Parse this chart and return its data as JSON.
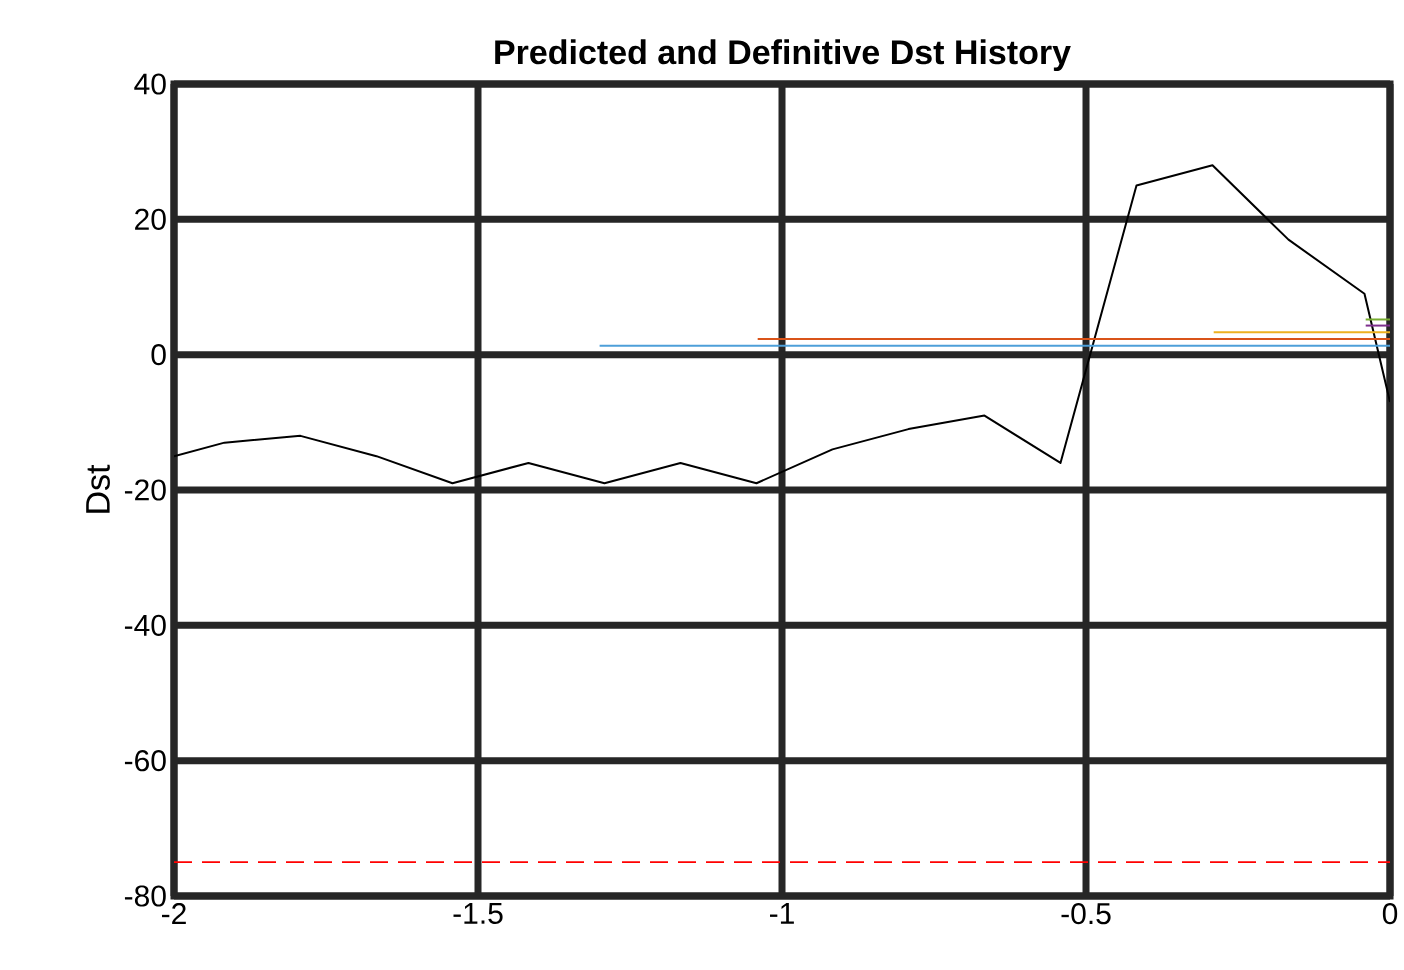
{
  "chart_data": {
    "type": "line",
    "title": "Predicted and Definitive Dst History",
    "ylabel": "Dst",
    "xlim": [
      -2,
      0
    ],
    "ylim": [
      -80,
      40
    ],
    "xticks": [
      -2,
      -1.5,
      -1,
      -0.5,
      0
    ],
    "yticks": [
      -80,
      -60,
      -40,
      -20,
      0,
      20,
      40
    ],
    "grid": true,
    "marker": "none",
    "line_style": "solid",
    "series": [
      {
        "color": "#000000",
        "x": [
          -2,
          -1.917,
          -1.792,
          -1.667,
          -1.542,
          -1.417,
          -1.292,
          -1.167,
          -1.042,
          -0.917,
          -0.792,
          -0.667,
          -0.542,
          -0.417,
          -0.292,
          -0.167,
          -0.042,
          0
        ],
        "values": [
          -15,
          -13,
          -12,
          -15,
          -19,
          -16,
          -19,
          -16,
          -19,
          -14,
          -11,
          -9,
          -16,
          25,
          28,
          17,
          9,
          -7
        ]
      },
      {
        "color": "#4d9fd9",
        "x": [
          -1.3,
          0
        ],
        "values": [
          1.3,
          1.3
        ]
      },
      {
        "color": "#d95319",
        "x": [
          -1.04,
          0
        ],
        "values": [
          2.3,
          2.3
        ]
      },
      {
        "color": "#edb120",
        "x": [
          -0.29,
          0
        ],
        "values": [
          3.3,
          3.3
        ]
      },
      {
        "color": "#7e2f8e",
        "x": [
          -0.04,
          0
        ],
        "values": [
          4.3,
          4.3
        ]
      },
      {
        "color": "#77ac30",
        "x": [
          -0.04,
          0
        ],
        "values": [
          5.2,
          5.2
        ]
      }
    ],
    "ref_lines": [
      {
        "axis": "y",
        "value": -75,
        "color": "#ff0000",
        "line_style": "dashed"
      }
    ]
  }
}
